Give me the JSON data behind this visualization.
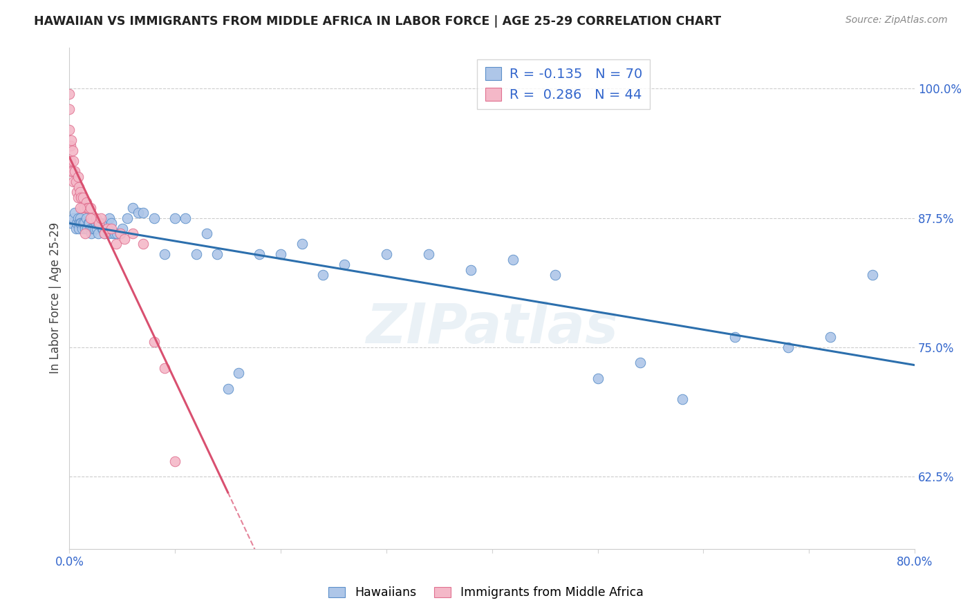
{
  "title": "HAWAIIAN VS IMMIGRANTS FROM MIDDLE AFRICA IN LABOR FORCE | AGE 25-29 CORRELATION CHART",
  "source": "Source: ZipAtlas.com",
  "ylabel": "In Labor Force | Age 25-29",
  "y_ticks": [
    0.625,
    0.75,
    0.875,
    1.0
  ],
  "y_tick_labels": [
    "62.5%",
    "75.0%",
    "87.5%",
    "100.0%"
  ],
  "xlim": [
    0.0,
    0.8
  ],
  "ylim": [
    0.555,
    1.04
  ],
  "hawaiians_R": -0.135,
  "hawaiians_N": 70,
  "immigrants_R": 0.286,
  "immigrants_N": 44,
  "blue_color": "#aec6e8",
  "blue_edge_color": "#5b8fc9",
  "blue_line_color": "#2c6fad",
  "pink_color": "#f4b8c8",
  "pink_edge_color": "#e07090",
  "pink_line_color": "#d95070",
  "legend_color": "#3366cc",
  "watermark": "ZIPatlas",
  "hawaiians_x": [
    0.002,
    0.004,
    0.005,
    0.006,
    0.007,
    0.008,
    0.009,
    0.009,
    0.01,
    0.01,
    0.011,
    0.012,
    0.013,
    0.014,
    0.015,
    0.016,
    0.017,
    0.018,
    0.019,
    0.02,
    0.021,
    0.022,
    0.024,
    0.025,
    0.026,
    0.027,
    0.028,
    0.03,
    0.031,
    0.032,
    0.033,
    0.035,
    0.037,
    0.038,
    0.04,
    0.041,
    0.043,
    0.045,
    0.048,
    0.05,
    0.055,
    0.06,
    0.065,
    0.07,
    0.08,
    0.09,
    0.1,
    0.11,
    0.12,
    0.13,
    0.14,
    0.15,
    0.16,
    0.18,
    0.2,
    0.22,
    0.24,
    0.26,
    0.3,
    0.34,
    0.38,
    0.42,
    0.46,
    0.5,
    0.54,
    0.58,
    0.63,
    0.68,
    0.72,
    0.76
  ],
  "hawaiians_y": [
    0.87,
    0.875,
    0.88,
    0.865,
    0.87,
    0.875,
    0.87,
    0.865,
    0.875,
    0.87,
    0.87,
    0.865,
    0.87,
    0.87,
    0.865,
    0.875,
    0.865,
    0.87,
    0.87,
    0.865,
    0.86,
    0.865,
    0.865,
    0.87,
    0.865,
    0.86,
    0.87,
    0.87,
    0.865,
    0.865,
    0.86,
    0.87,
    0.86,
    0.875,
    0.87,
    0.86,
    0.86,
    0.86,
    0.86,
    0.865,
    0.875,
    0.885,
    0.88,
    0.88,
    0.875,
    0.84,
    0.875,
    0.875,
    0.84,
    0.86,
    0.84,
    0.71,
    0.725,
    0.84,
    0.84,
    0.85,
    0.82,
    0.83,
    0.84,
    0.84,
    0.825,
    0.835,
    0.82,
    0.72,
    0.735,
    0.7,
    0.76,
    0.75,
    0.76,
    0.82
  ],
  "immigrants_x": [
    0.0,
    0.0,
    0.0,
    0.001,
    0.001,
    0.002,
    0.002,
    0.003,
    0.003,
    0.004,
    0.004,
    0.005,
    0.006,
    0.007,
    0.008,
    0.008,
    0.009,
    0.01,
    0.011,
    0.012,
    0.013,
    0.014,
    0.015,
    0.016,
    0.017,
    0.018,
    0.02,
    0.022,
    0.025,
    0.028,
    0.03,
    0.033,
    0.036,
    0.04,
    0.044,
    0.048,
    0.052,
    0.06,
    0.07,
    0.08,
    0.09,
    0.1,
    0.02,
    0.01
  ],
  "immigrants_y": [
    0.995,
    0.98,
    0.96,
    0.945,
    0.93,
    0.95,
    0.92,
    0.94,
    0.92,
    0.93,
    0.91,
    0.92,
    0.91,
    0.9,
    0.915,
    0.895,
    0.905,
    0.9,
    0.895,
    0.885,
    0.895,
    0.885,
    0.86,
    0.89,
    0.885,
    0.885,
    0.885,
    0.875,
    0.875,
    0.87,
    0.875,
    0.86,
    0.865,
    0.865,
    0.85,
    0.86,
    0.855,
    0.86,
    0.85,
    0.755,
    0.73,
    0.64,
    0.875,
    0.885
  ]
}
